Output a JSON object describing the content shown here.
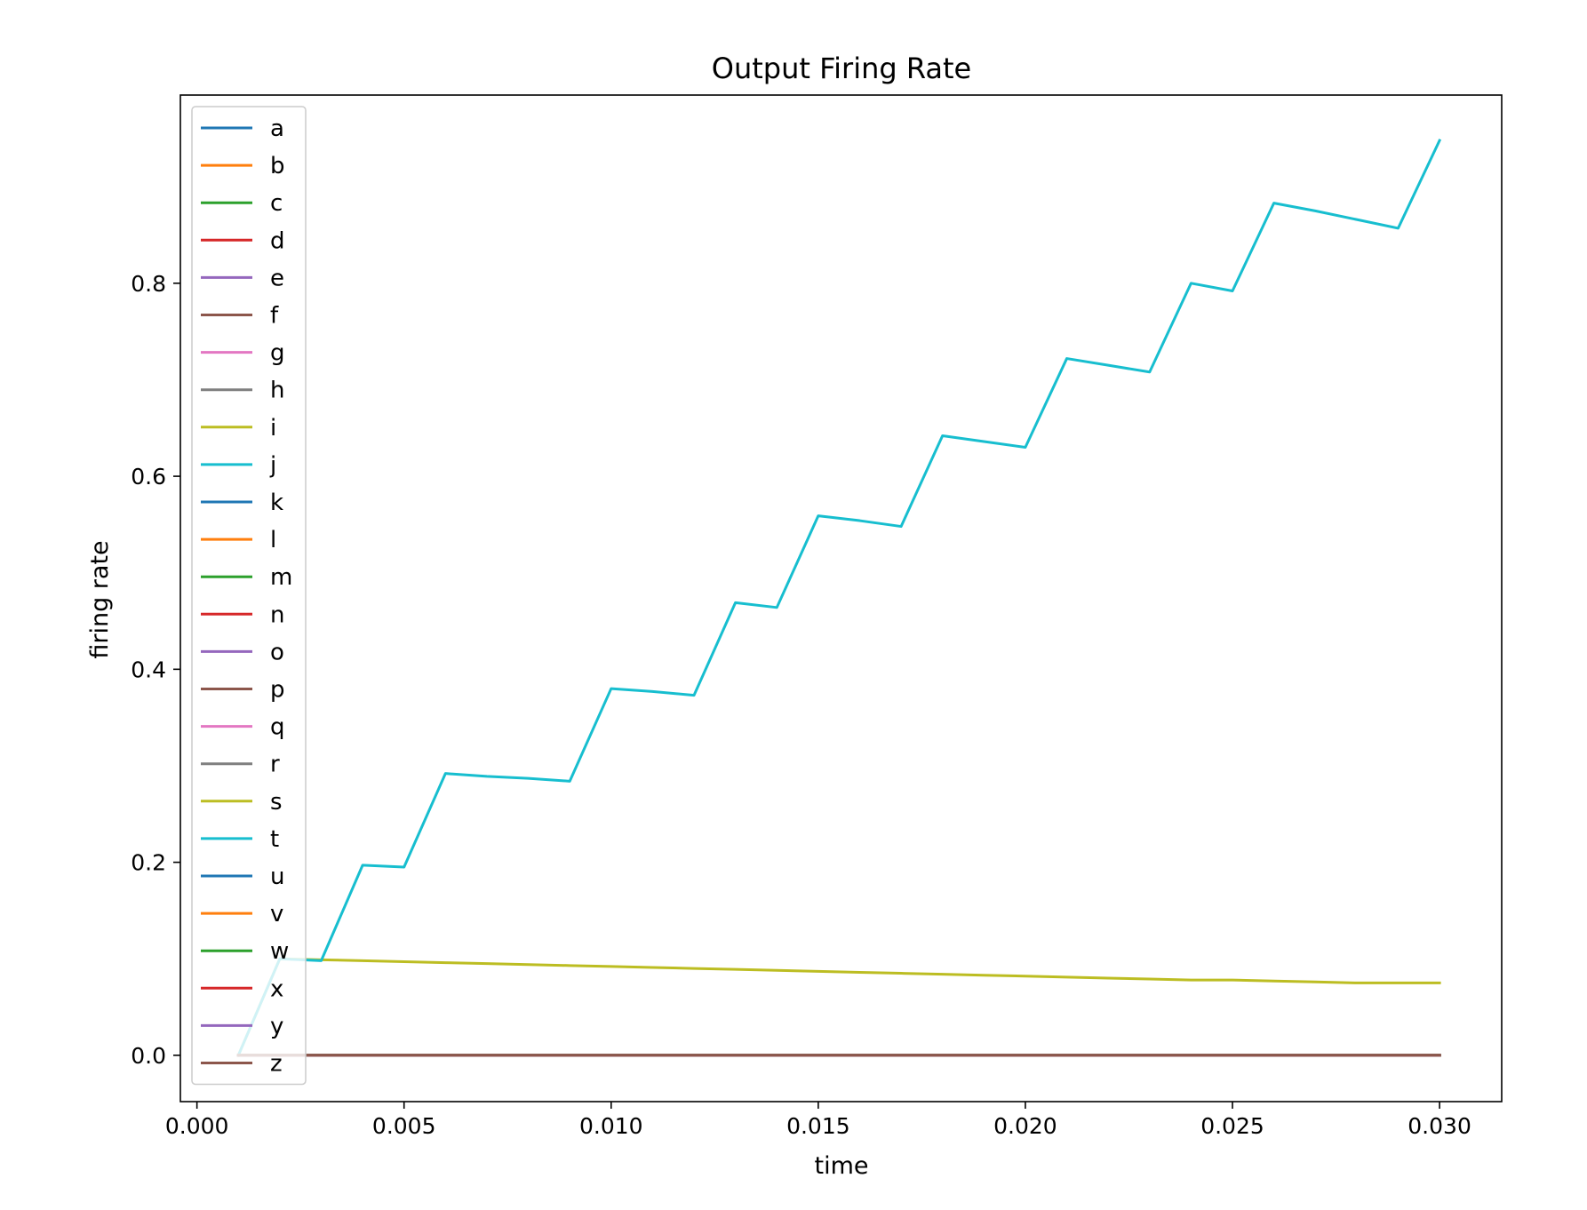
{
  "chart_data": {
    "type": "line",
    "title": "Output Firing Rate",
    "xlabel": "time",
    "ylabel": "firing rate",
    "xlim": [
      -0.0004,
      0.0315
    ],
    "ylim": [
      -0.048,
      0.995
    ],
    "x_ticks": [
      0.0,
      0.005,
      0.01,
      0.015,
      0.02,
      0.025,
      0.03
    ],
    "x_tick_labels": [
      "0.000",
      "0.005",
      "0.010",
      "0.015",
      "0.020",
      "0.025",
      "0.030"
    ],
    "y_ticks": [
      0.0,
      0.2,
      0.4,
      0.6,
      0.8
    ],
    "y_tick_labels": [
      "0.0",
      "0.2",
      "0.4",
      "0.6",
      "0.8"
    ],
    "grid": false,
    "legend_position": "upper-left",
    "x": [
      0.001,
      0.002,
      0.003,
      0.004,
      0.005,
      0.006,
      0.007,
      0.008,
      0.009,
      0.01,
      0.011,
      0.012,
      0.013,
      0.014,
      0.015,
      0.016,
      0.017,
      0.018,
      0.019,
      0.02,
      0.021,
      0.022,
      0.023,
      0.024,
      0.025,
      0.026,
      0.027,
      0.028,
      0.029,
      0.03
    ],
    "series": [
      {
        "name": "a",
        "color": "#1f77b4",
        "values": [
          0,
          0,
          0,
          0,
          0,
          0,
          0,
          0,
          0,
          0,
          0,
          0,
          0,
          0,
          0,
          0,
          0,
          0,
          0,
          0,
          0,
          0,
          0,
          0,
          0,
          0,
          0,
          0,
          0,
          0
        ]
      },
      {
        "name": "b",
        "color": "#ff7f0e",
        "values": [
          0,
          0,
          0,
          0,
          0,
          0,
          0,
          0,
          0,
          0,
          0,
          0,
          0,
          0,
          0,
          0,
          0,
          0,
          0,
          0,
          0,
          0,
          0,
          0,
          0,
          0,
          0,
          0,
          0,
          0
        ]
      },
      {
        "name": "c",
        "color": "#2ca02c",
        "values": [
          0,
          0,
          0,
          0,
          0,
          0,
          0,
          0,
          0,
          0,
          0,
          0,
          0,
          0,
          0,
          0,
          0,
          0,
          0,
          0,
          0,
          0,
          0,
          0,
          0,
          0,
          0,
          0,
          0,
          0
        ]
      },
      {
        "name": "d",
        "color": "#d62728",
        "values": [
          0,
          0,
          0,
          0,
          0,
          0,
          0,
          0,
          0,
          0,
          0,
          0,
          0,
          0,
          0,
          0,
          0,
          0,
          0,
          0,
          0,
          0,
          0,
          0,
          0,
          0,
          0,
          0,
          0,
          0
        ]
      },
      {
        "name": "e",
        "color": "#9467bd",
        "values": [
          0,
          0,
          0,
          0,
          0,
          0,
          0,
          0,
          0,
          0,
          0,
          0,
          0,
          0,
          0,
          0,
          0,
          0,
          0,
          0,
          0,
          0,
          0,
          0,
          0,
          0,
          0,
          0,
          0,
          0
        ]
      },
      {
        "name": "f",
        "color": "#8c564b",
        "values": [
          0,
          0,
          0,
          0,
          0,
          0,
          0,
          0,
          0,
          0,
          0,
          0,
          0,
          0,
          0,
          0,
          0,
          0,
          0,
          0,
          0,
          0,
          0,
          0,
          0,
          0,
          0,
          0,
          0,
          0
        ]
      },
      {
        "name": "g",
        "color": "#e377c2",
        "values": [
          0,
          0,
          0,
          0,
          0,
          0,
          0,
          0,
          0,
          0,
          0,
          0,
          0,
          0,
          0,
          0,
          0,
          0,
          0,
          0,
          0,
          0,
          0,
          0,
          0,
          0,
          0,
          0,
          0,
          0
        ]
      },
      {
        "name": "h",
        "color": "#7f7f7f",
        "values": [
          0,
          0,
          0,
          0,
          0,
          0,
          0,
          0,
          0,
          0,
          0,
          0,
          0,
          0,
          0,
          0,
          0,
          0,
          0,
          0,
          0,
          0,
          0,
          0,
          0,
          0,
          0,
          0,
          0,
          0
        ]
      },
      {
        "name": "i",
        "color": "#bcbd22",
        "values": [
          0,
          0.1,
          0.099,
          0.098,
          0.097,
          0.096,
          0.095,
          0.094,
          0.093,
          0.092,
          0.091,
          0.09,
          0.089,
          0.088,
          0.087,
          0.086,
          0.085,
          0.084,
          0.083,
          0.082,
          0.081,
          0.08,
          0.079,
          0.078,
          0.078,
          0.077,
          0.076,
          0.075,
          0.075,
          0.075
        ]
      },
      {
        "name": "j",
        "color": "#17becf",
        "values": [
          0,
          0.1,
          0.098,
          0.197,
          0.195,
          0.292,
          0.289,
          0.287,
          0.284,
          0.38,
          0.377,
          0.373,
          0.469,
          0.464,
          0.559,
          0.554,
          0.548,
          0.642,
          0.636,
          0.63,
          0.722,
          0.715,
          0.708,
          0.8,
          0.792,
          0.883,
          0.875,
          0.866,
          0.857,
          0.948
        ]
      },
      {
        "name": "k",
        "color": "#1f77b4",
        "values": [
          0,
          0,
          0,
          0,
          0,
          0,
          0,
          0,
          0,
          0,
          0,
          0,
          0,
          0,
          0,
          0,
          0,
          0,
          0,
          0,
          0,
          0,
          0,
          0,
          0,
          0,
          0,
          0,
          0,
          0
        ]
      },
      {
        "name": "l",
        "color": "#ff7f0e",
        "values": [
          0,
          0,
          0,
          0,
          0,
          0,
          0,
          0,
          0,
          0,
          0,
          0,
          0,
          0,
          0,
          0,
          0,
          0,
          0,
          0,
          0,
          0,
          0,
          0,
          0,
          0,
          0,
          0,
          0,
          0
        ]
      },
      {
        "name": "m",
        "color": "#2ca02c",
        "values": [
          0,
          0,
          0,
          0,
          0,
          0,
          0,
          0,
          0,
          0,
          0,
          0,
          0,
          0,
          0,
          0,
          0,
          0,
          0,
          0,
          0,
          0,
          0,
          0,
          0,
          0,
          0,
          0,
          0,
          0
        ]
      },
      {
        "name": "n",
        "color": "#d62728",
        "values": [
          0,
          0,
          0,
          0,
          0,
          0,
          0,
          0,
          0,
          0,
          0,
          0,
          0,
          0,
          0,
          0,
          0,
          0,
          0,
          0,
          0,
          0,
          0,
          0,
          0,
          0,
          0,
          0,
          0,
          0
        ]
      },
      {
        "name": "o",
        "color": "#9467bd",
        "values": [
          0,
          0,
          0,
          0,
          0,
          0,
          0,
          0,
          0,
          0,
          0,
          0,
          0,
          0,
          0,
          0,
          0,
          0,
          0,
          0,
          0,
          0,
          0,
          0,
          0,
          0,
          0,
          0,
          0,
          0
        ]
      },
      {
        "name": "p",
        "color": "#8c564b",
        "values": [
          0,
          0,
          0,
          0,
          0,
          0,
          0,
          0,
          0,
          0,
          0,
          0,
          0,
          0,
          0,
          0,
          0,
          0,
          0,
          0,
          0,
          0,
          0,
          0,
          0,
          0,
          0,
          0,
          0,
          0
        ]
      },
      {
        "name": "q",
        "color": "#e377c2",
        "values": [
          0,
          0,
          0,
          0,
          0,
          0,
          0,
          0,
          0,
          0,
          0,
          0,
          0,
          0,
          0,
          0,
          0,
          0,
          0,
          0,
          0,
          0,
          0,
          0,
          0,
          0,
          0,
          0,
          0,
          0
        ]
      },
      {
        "name": "r",
        "color": "#7f7f7f",
        "values": [
          0,
          0,
          0,
          0,
          0,
          0,
          0,
          0,
          0,
          0,
          0,
          0,
          0,
          0,
          0,
          0,
          0,
          0,
          0,
          0,
          0,
          0,
          0,
          0,
          0,
          0,
          0,
          0,
          0,
          0
        ]
      },
      {
        "name": "s",
        "color": "#bcbd22",
        "values": [
          0,
          0,
          0,
          0,
          0,
          0,
          0,
          0,
          0,
          0,
          0,
          0,
          0,
          0,
          0,
          0,
          0,
          0,
          0,
          0,
          0,
          0,
          0,
          0,
          0,
          0,
          0,
          0,
          0,
          0
        ]
      },
      {
        "name": "t",
        "color": "#17becf",
        "values": [
          0,
          0,
          0,
          0,
          0,
          0,
          0,
          0,
          0,
          0,
          0,
          0,
          0,
          0,
          0,
          0,
          0,
          0,
          0,
          0,
          0,
          0,
          0,
          0,
          0,
          0,
          0,
          0,
          0,
          0
        ]
      },
      {
        "name": "u",
        "color": "#1f77b4",
        "values": [
          0,
          0,
          0,
          0,
          0,
          0,
          0,
          0,
          0,
          0,
          0,
          0,
          0,
          0,
          0,
          0,
          0,
          0,
          0,
          0,
          0,
          0,
          0,
          0,
          0,
          0,
          0,
          0,
          0,
          0
        ]
      },
      {
        "name": "v",
        "color": "#ff7f0e",
        "values": [
          0,
          0,
          0,
          0,
          0,
          0,
          0,
          0,
          0,
          0,
          0,
          0,
          0,
          0,
          0,
          0,
          0,
          0,
          0,
          0,
          0,
          0,
          0,
          0,
          0,
          0,
          0,
          0,
          0,
          0
        ]
      },
      {
        "name": "w",
        "color": "#2ca02c",
        "values": [
          0,
          0,
          0,
          0,
          0,
          0,
          0,
          0,
          0,
          0,
          0,
          0,
          0,
          0,
          0,
          0,
          0,
          0,
          0,
          0,
          0,
          0,
          0,
          0,
          0,
          0,
          0,
          0,
          0,
          0
        ]
      },
      {
        "name": "x",
        "color": "#d62728",
        "values": [
          0,
          0,
          0,
          0,
          0,
          0,
          0,
          0,
          0,
          0,
          0,
          0,
          0,
          0,
          0,
          0,
          0,
          0,
          0,
          0,
          0,
          0,
          0,
          0,
          0,
          0,
          0,
          0,
          0,
          0
        ]
      },
      {
        "name": "y",
        "color": "#9467bd",
        "values": [
          0,
          0,
          0,
          0,
          0,
          0,
          0,
          0,
          0,
          0,
          0,
          0,
          0,
          0,
          0,
          0,
          0,
          0,
          0,
          0,
          0,
          0,
          0,
          0,
          0,
          0,
          0,
          0,
          0,
          0
        ]
      },
      {
        "name": "z",
        "color": "#8c564b",
        "values": [
          0,
          0,
          0,
          0,
          0,
          0,
          0,
          0,
          0,
          0,
          0,
          0,
          0,
          0,
          0,
          0,
          0,
          0,
          0,
          0,
          0,
          0,
          0,
          0,
          0,
          0,
          0,
          0,
          0,
          0
        ]
      }
    ]
  }
}
